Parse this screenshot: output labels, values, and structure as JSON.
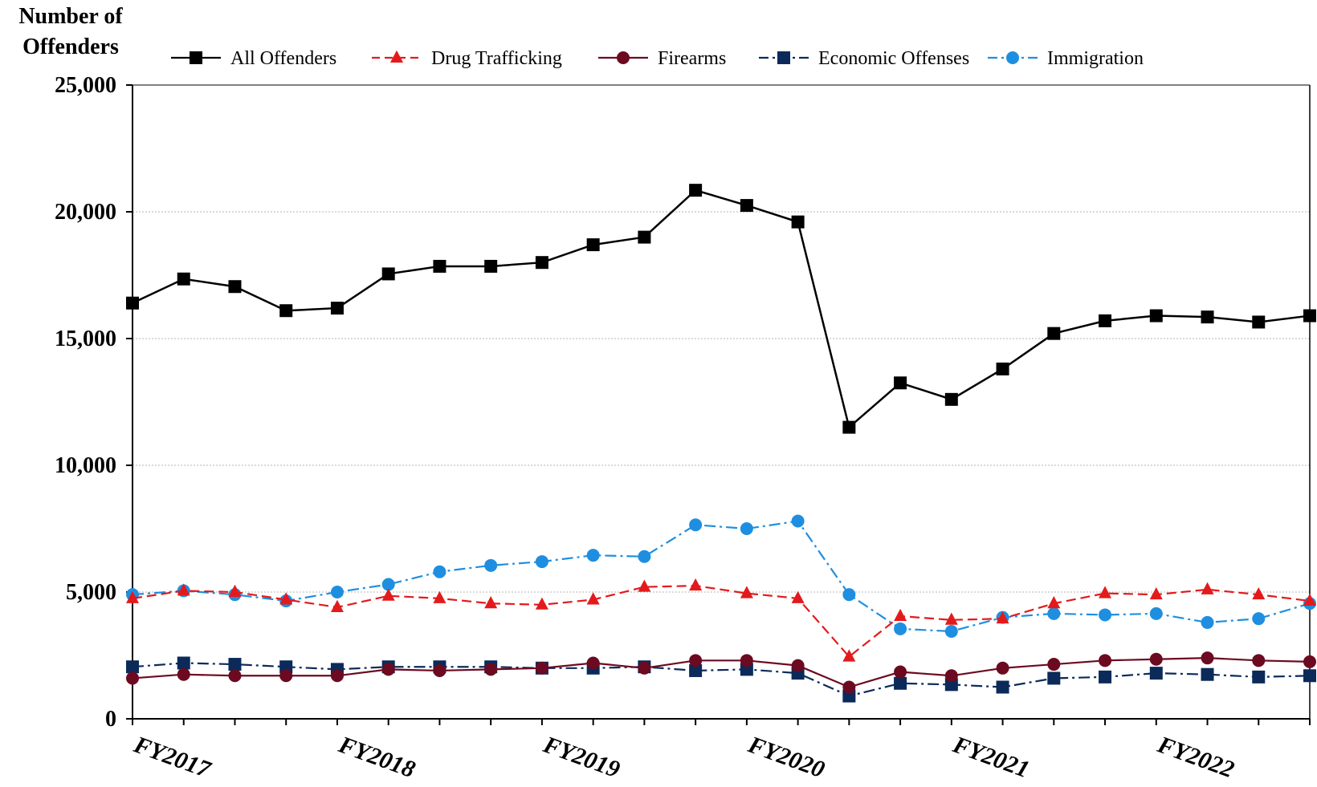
{
  "chart_data": {
    "type": "line",
    "ylabel": "Number of Offenders",
    "ylim": [
      0,
      25000
    ],
    "y_ticks": [
      0,
      5000,
      10000,
      15000,
      20000,
      25000
    ],
    "y_tick_labels": [
      "0",
      "5,000",
      "10,000",
      "15,000",
      "20,000",
      "25,000"
    ],
    "x_tick_labels": [
      "FY2017",
      "FY2018",
      "FY2019",
      "FY2020",
      "FY2021",
      "FY2022"
    ],
    "points_per_year": 4,
    "grid": true,
    "legend_position": "top",
    "series": [
      {
        "name": "All Offenders",
        "color": "#000000",
        "marker": "square",
        "dash": "solid",
        "values": [
          16400,
          17350,
          17050,
          16100,
          16200,
          17550,
          17850,
          17850,
          18000,
          18700,
          19000,
          20850,
          20250,
          19600,
          11500,
          13250,
          12600,
          13800,
          15200,
          15700,
          15900,
          15850,
          15650,
          15900
        ]
      },
      {
        "name": "Drug Trafficking",
        "color": "#e31a1c",
        "marker": "triangle",
        "dash": "dashed",
        "values": [
          4750,
          5050,
          5000,
          4700,
          4400,
          4850,
          4750,
          4550,
          4500,
          4700,
          5200,
          5250,
          4950,
          4750,
          2450,
          4050,
          3900,
          3950,
          4550,
          4950,
          4900,
          5100,
          4900,
          4650
        ]
      },
      {
        "name": "Firearms",
        "color": "#6b0a20",
        "marker": "circle",
        "dash": "solid",
        "values": [
          1600,
          1750,
          1700,
          1700,
          1700,
          1950,
          1900,
          1950,
          2000,
          2200,
          2000,
          2300,
          2300,
          2100,
          1250,
          1850,
          1700,
          2000,
          2150,
          2300,
          2350,
          2400,
          2300,
          2250
        ]
      },
      {
        "name": "Economic Offenses",
        "color": "#0b2a5a",
        "marker": "square",
        "dash": "dashdot",
        "values": [
          2050,
          2200,
          2150,
          2050,
          1950,
          2050,
          2050,
          2050,
          2000,
          2000,
          2050,
          1900,
          1950,
          1800,
          900,
          1400,
          1350,
          1250,
          1600,
          1650,
          1800,
          1750,
          1650,
          1700
        ]
      },
      {
        "name": "Immigration",
        "color": "#1e8fe0",
        "marker": "circle",
        "dash": "dashdot",
        "values": [
          4900,
          5050,
          4900,
          4650,
          5000,
          5300,
          5800,
          6050,
          6200,
          6450,
          6400,
          7650,
          7500,
          7800,
          4900,
          3550,
          3450,
          4000,
          4150,
          4100,
          4150,
          3800,
          3950,
          4550
        ]
      }
    ]
  }
}
